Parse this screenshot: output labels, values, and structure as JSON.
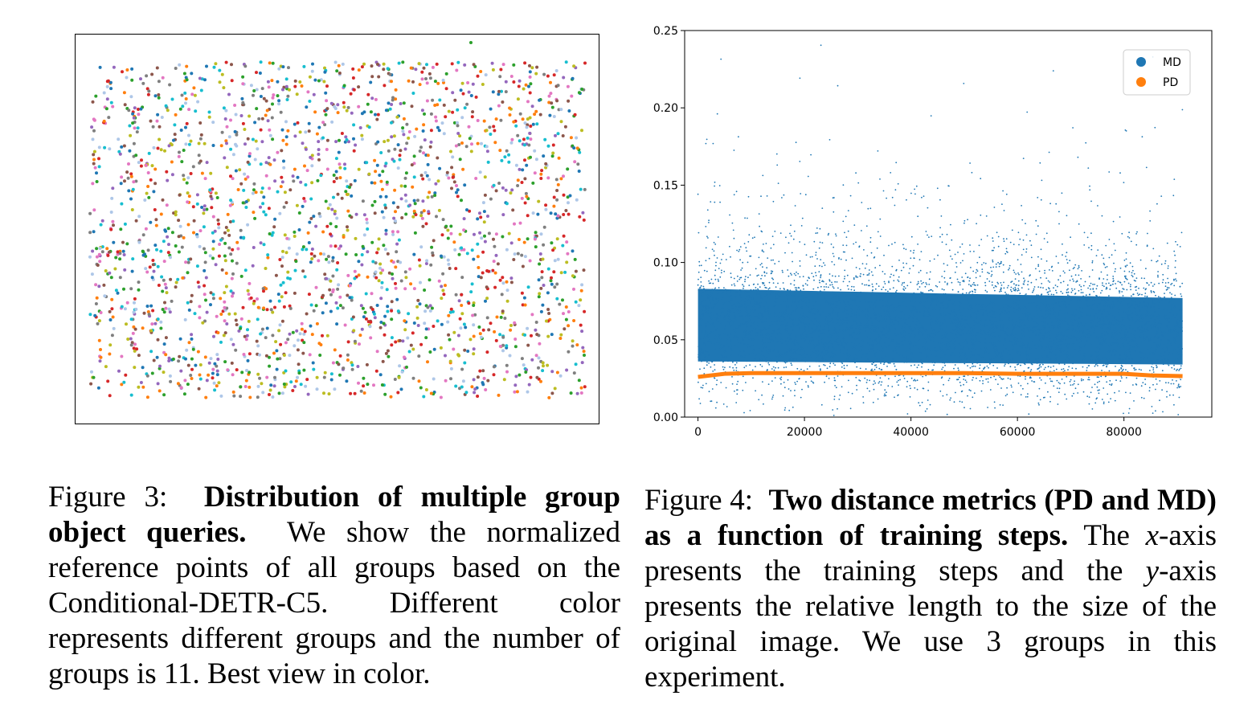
{
  "figure3": {
    "caption_prefix": "Figure 3:",
    "caption_bold": "Distribution of multiple group object queries.",
    "caption_text": "We show the normalized reference points of all groups based on the Conditional-DETR-C5. Different color represents different groups and the number of groups is 11. Best view in color.",
    "groups": 11,
    "group_colors": [
      "#1f77b4",
      "#ff7f0e",
      "#2ca02c",
      "#d62728",
      "#9467bd",
      "#8c564b",
      "#e377c2",
      "#7f7f7f",
      "#bcbd22",
      "#17becf",
      "#aec7e8"
    ]
  },
  "figure4": {
    "caption_prefix": "Figure 4:",
    "caption_bold": "Two distance metrics (PD and MD) as a function of training steps.",
    "caption_text_1": "The",
    "caption_x": "x",
    "caption_text_2": "-axis presents the training steps and the",
    "caption_y": "y",
    "caption_text_3": "-axis presents the relative length to the size of the original image. We use 3 groups in this experiment."
  },
  "chart_data": {
    "type": "scatter",
    "title": "",
    "xlabel": "",
    "ylabel": "",
    "xlim": [
      -2500,
      96500
    ],
    "ylim": [
      0.0,
      0.25
    ],
    "xticks": [
      0,
      20000,
      40000,
      60000,
      80000
    ],
    "xtick_labels": [
      "0",
      "20000",
      "40000",
      "60000",
      "80000"
    ],
    "yticks": [
      0.0,
      0.05,
      0.1,
      0.15,
      0.2,
      0.25
    ],
    "ytick_labels": [
      "0.00",
      "0.05",
      "0.10",
      "0.15",
      "0.20",
      "0.25"
    ],
    "grid": false,
    "legend_position": "top-right",
    "series": [
      {
        "name": "MD",
        "color": "#1f77b4",
        "x_range": [
          0,
          91000
        ],
        "dense_band": [
          0.03,
          0.09
        ],
        "center_start": 0.06,
        "center_end": 0.055,
        "max_outlier": 0.245
      },
      {
        "name": "PD",
        "color": "#ff7f0e",
        "x": [
          0,
          5000,
          10000,
          20000,
          30000,
          40000,
          50000,
          60000,
          70000,
          80000,
          85000,
          91000
        ],
        "y": [
          0.026,
          0.028,
          0.0285,
          0.0285,
          0.0285,
          0.0285,
          0.0285,
          0.028,
          0.028,
          0.028,
          0.027,
          0.0265
        ]
      }
    ]
  }
}
